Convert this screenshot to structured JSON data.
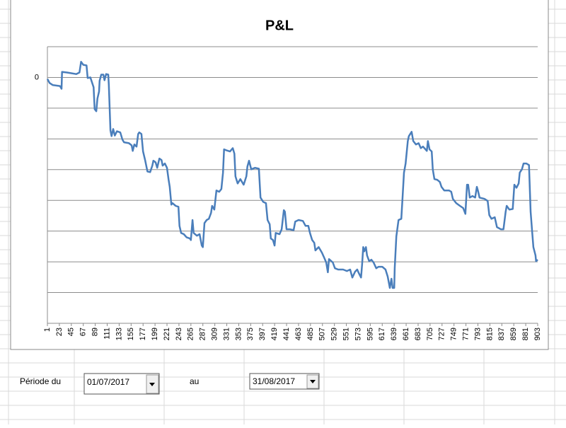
{
  "chart_data": {
    "type": "line",
    "title": "P&L",
    "x": [
      1,
      5,
      11,
      24,
      27,
      28,
      37,
      44,
      54,
      60,
      63,
      67,
      73,
      75,
      80,
      86,
      88,
      91,
      93,
      96,
      97,
      100,
      104,
      106,
      109,
      113,
      114,
      117,
      119,
      122,
      125,
      129,
      135,
      139,
      142,
      151,
      156,
      158,
      161,
      165,
      168,
      170,
      174,
      177,
      181,
      185,
      190,
      194,
      196,
      200,
      203,
      207,
      211,
      213,
      217,
      221,
      224,
      226,
      229,
      231,
      237,
      242,
      244,
      247,
      252,
      257,
      263,
      265,
      268,
      270,
      276,
      281,
      285,
      287,
      290,
      294,
      298,
      302,
      304,
      308,
      312,
      317,
      321,
      324,
      326,
      330,
      337,
      342,
      345,
      347,
      351,
      356,
      362,
      367,
      369,
      372,
      376,
      383,
      390,
      393,
      398,
      403,
      406,
      410,
      412,
      416,
      419,
      421,
      428,
      432,
      436,
      438,
      441,
      447,
      454,
      457,
      463,
      471,
      476,
      481,
      484,
      488,
      492,
      494,
      500,
      506,
      510,
      514,
      517,
      519,
      526,
      530,
      536,
      545,
      552,
      558,
      562,
      567,
      571,
      574,
      578,
      580,
      582,
      584,
      587,
      589,
      593,
      597,
      601,
      606,
      610,
      617,
      623,
      627,
      631,
      634,
      636,
      639,
      640,
      643,
      647,
      652,
      654,
      657,
      660,
      664,
      666,
      671,
      674,
      679,
      684,
      688,
      692,
      699,
      701,
      704,
      708,
      710,
      713,
      718,
      723,
      726,
      731,
      740,
      744,
      747,
      753,
      760,
      766,
      770,
      773,
      775,
      778,
      783,
      788,
      791,
      793,
      796,
      805,
      811,
      814,
      818,
      824,
      828,
      835,
      840,
      844,
      846,
      851,
      857,
      860,
      864,
      868,
      870,
      874,
      877,
      882,
      887,
      890,
      893,
      895,
      899,
      900,
      903
    ],
    "values": [
      -0.05,
      -0.18,
      -0.25,
      -0.28,
      -0.37,
      0.18,
      0.16,
      0.14,
      0.11,
      0.16,
      0.51,
      0.41,
      0.39,
      -0.02,
      0,
      -0.32,
      -1.03,
      -1.1,
      -0.69,
      -0.46,
      -0.11,
      0.09,
      0.09,
      -0.09,
      0.11,
      0.09,
      -0.23,
      -1.72,
      -1.91,
      -1.68,
      -1.89,
      -1.75,
      -1.79,
      -2.02,
      -2.11,
      -2.14,
      -2.21,
      -2.39,
      -2.18,
      -2.25,
      -1.84,
      -1.79,
      -1.84,
      -2.41,
      -2.71,
      -3.06,
      -3.08,
      -2.87,
      -2.71,
      -2.76,
      -2.94,
      -2.64,
      -2.69,
      -2.87,
      -2.8,
      -2.94,
      -3.33,
      -3.56,
      -4.14,
      -4.09,
      -4.18,
      -4.21,
      -4.83,
      -5.06,
      -5.1,
      -5.2,
      -5.24,
      -5.29,
      -4.64,
      -5.06,
      -5.15,
      -5.1,
      -5.47,
      -5.52,
      -4.74,
      -4.64,
      -4.6,
      -4.41,
      -4.18,
      -4.3,
      -3.68,
      -3.72,
      -3.63,
      -3.1,
      -2.34,
      -2.37,
      -2.41,
      -2.3,
      -2.48,
      -3.22,
      -3.45,
      -3.31,
      -3.49,
      -3.22,
      -2.9,
      -2.71,
      -2.99,
      -2.94,
      -2.97,
      -3.91,
      -4.05,
      -4.09,
      -4.64,
      -4.78,
      -5.24,
      -5.29,
      -5.47,
      -5.06,
      -5.1,
      -4.94,
      -4.32,
      -4.37,
      -4.94,
      -4.94,
      -4.97,
      -4.69,
      -4.64,
      -4.67,
      -4.83,
      -4.83,
      -5.06,
      -5.29,
      -5.38,
      -5.63,
      -5.52,
      -5.7,
      -5.86,
      -6.02,
      -6.34,
      -5.91,
      -6.02,
      -6.21,
      -6.25,
      -6.25,
      -6.3,
      -6.25,
      -6.51,
      -6.32,
      -6.25,
      -6.37,
      -6.51,
      -6.09,
      -5.52,
      -5.66,
      -5.52,
      -5.79,
      -5.98,
      -5.93,
      -6.02,
      -6.21,
      -6.16,
      -6.16,
      -6.25,
      -6.48,
      -6.85,
      -6.55,
      -6.85,
      -6.85,
      -6.21,
      -5.17,
      -4.64,
      -4.6,
      -4.02,
      -3.1,
      -2.8,
      -2.07,
      -1.91,
      -1.77,
      -2.07,
      -2.18,
      -2.14,
      -2.3,
      -2.25,
      -2.39,
      -2.07,
      -2.34,
      -2.41,
      -2.99,
      -3.31,
      -3.33,
      -3.4,
      -3.56,
      -3.68,
      -3.68,
      -3.72,
      -3.95,
      -4.09,
      -4.18,
      -4.25,
      -4.44,
      -3.49,
      -3.49,
      -3.91,
      -3.86,
      -3.91,
      -3.56,
      -3.68,
      -3.91,
      -3.95,
      -4.02,
      -4.48,
      -4.6,
      -4.55,
      -4.87,
      -4.94,
      -4.94,
      -4.37,
      -4.18,
      -4.3,
      -4.28,
      -3.49,
      -3.59,
      -3.45,
      -3.1,
      -2.99,
      -2.8,
      -2.8,
      -2.85,
      -4.37,
      -5.06,
      -5.52,
      -5.79,
      -5.98,
      -5.93
    ],
    "color": "#4a7ebb",
    "xlim": [
      1,
      903
    ],
    "xticks": [
      1,
      23,
      45,
      67,
      89,
      111,
      133,
      155,
      177,
      199,
      221,
      243,
      265,
      287,
      309,
      331,
      353,
      375,
      397,
      419,
      441,
      463,
      485,
      507,
      529,
      551,
      573,
      595,
      617,
      639,
      661,
      683,
      705,
      727,
      749,
      771,
      793,
      815,
      837,
      859,
      881,
      903
    ],
    "ylim": [
      -8,
      1
    ],
    "yticks": [
      0
    ],
    "ygrid": [
      1,
      -1,
      -2,
      -3,
      -4,
      -5,
      -6,
      -7
    ],
    "grid": true
  },
  "controls": {
    "period_label": "Période du",
    "from": "01/07/2017",
    "to_label": "au",
    "to": "31/08/2017"
  }
}
